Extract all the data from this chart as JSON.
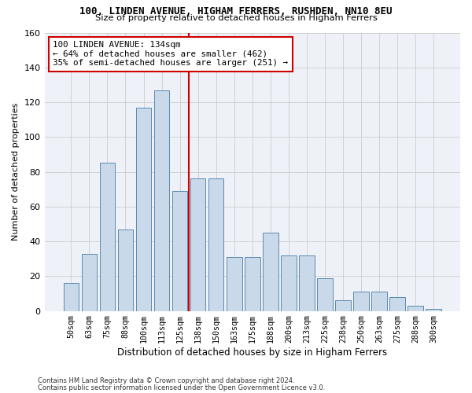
{
  "title1": "100, LINDEN AVENUE, HIGHAM FERRERS, RUSHDEN, NN10 8EU",
  "title2": "Size of property relative to detached houses in Higham Ferrers",
  "xlabel": "Distribution of detached houses by size in Higham Ferrers",
  "ylabel": "Number of detached properties",
  "footnote1": "Contains HM Land Registry data © Crown copyright and database right 2024.",
  "footnote2": "Contains public sector information licensed under the Open Government Licence v3.0.",
  "bar_labels": [
    "50sqm",
    "63sqm",
    "75sqm",
    "88sqm",
    "100sqm",
    "113sqm",
    "125sqm",
    "138sqm",
    "150sqm",
    "163sqm",
    "175sqm",
    "188sqm",
    "200sqm",
    "213sqm",
    "225sqm",
    "238sqm",
    "250sqm",
    "263sqm",
    "275sqm",
    "288sqm",
    "300sqm"
  ],
  "bar_values": [
    16,
    33,
    85,
    47,
    117,
    127,
    69,
    76,
    76,
    31,
    31,
    45,
    32,
    32,
    19,
    6,
    11,
    11,
    8,
    3,
    1
  ],
  "bar_color": "#c9d9e9",
  "bar_edge_color": "#5a8ab0",
  "grid_color": "#cccccc",
  "vline_color": "#cc0000",
  "annotation_text": "100 LINDEN AVENUE: 134sqm\n← 64% of detached houses are smaller (462)\n35% of semi-detached houses are larger (251) →",
  "annotation_box_color": "#ffffff",
  "annotation_box_edge": "#cc0000",
  "ylim": [
    0,
    160
  ],
  "yticks": [
    0,
    20,
    40,
    60,
    80,
    100,
    120,
    140,
    160
  ],
  "bg_color": "#eef2f8"
}
